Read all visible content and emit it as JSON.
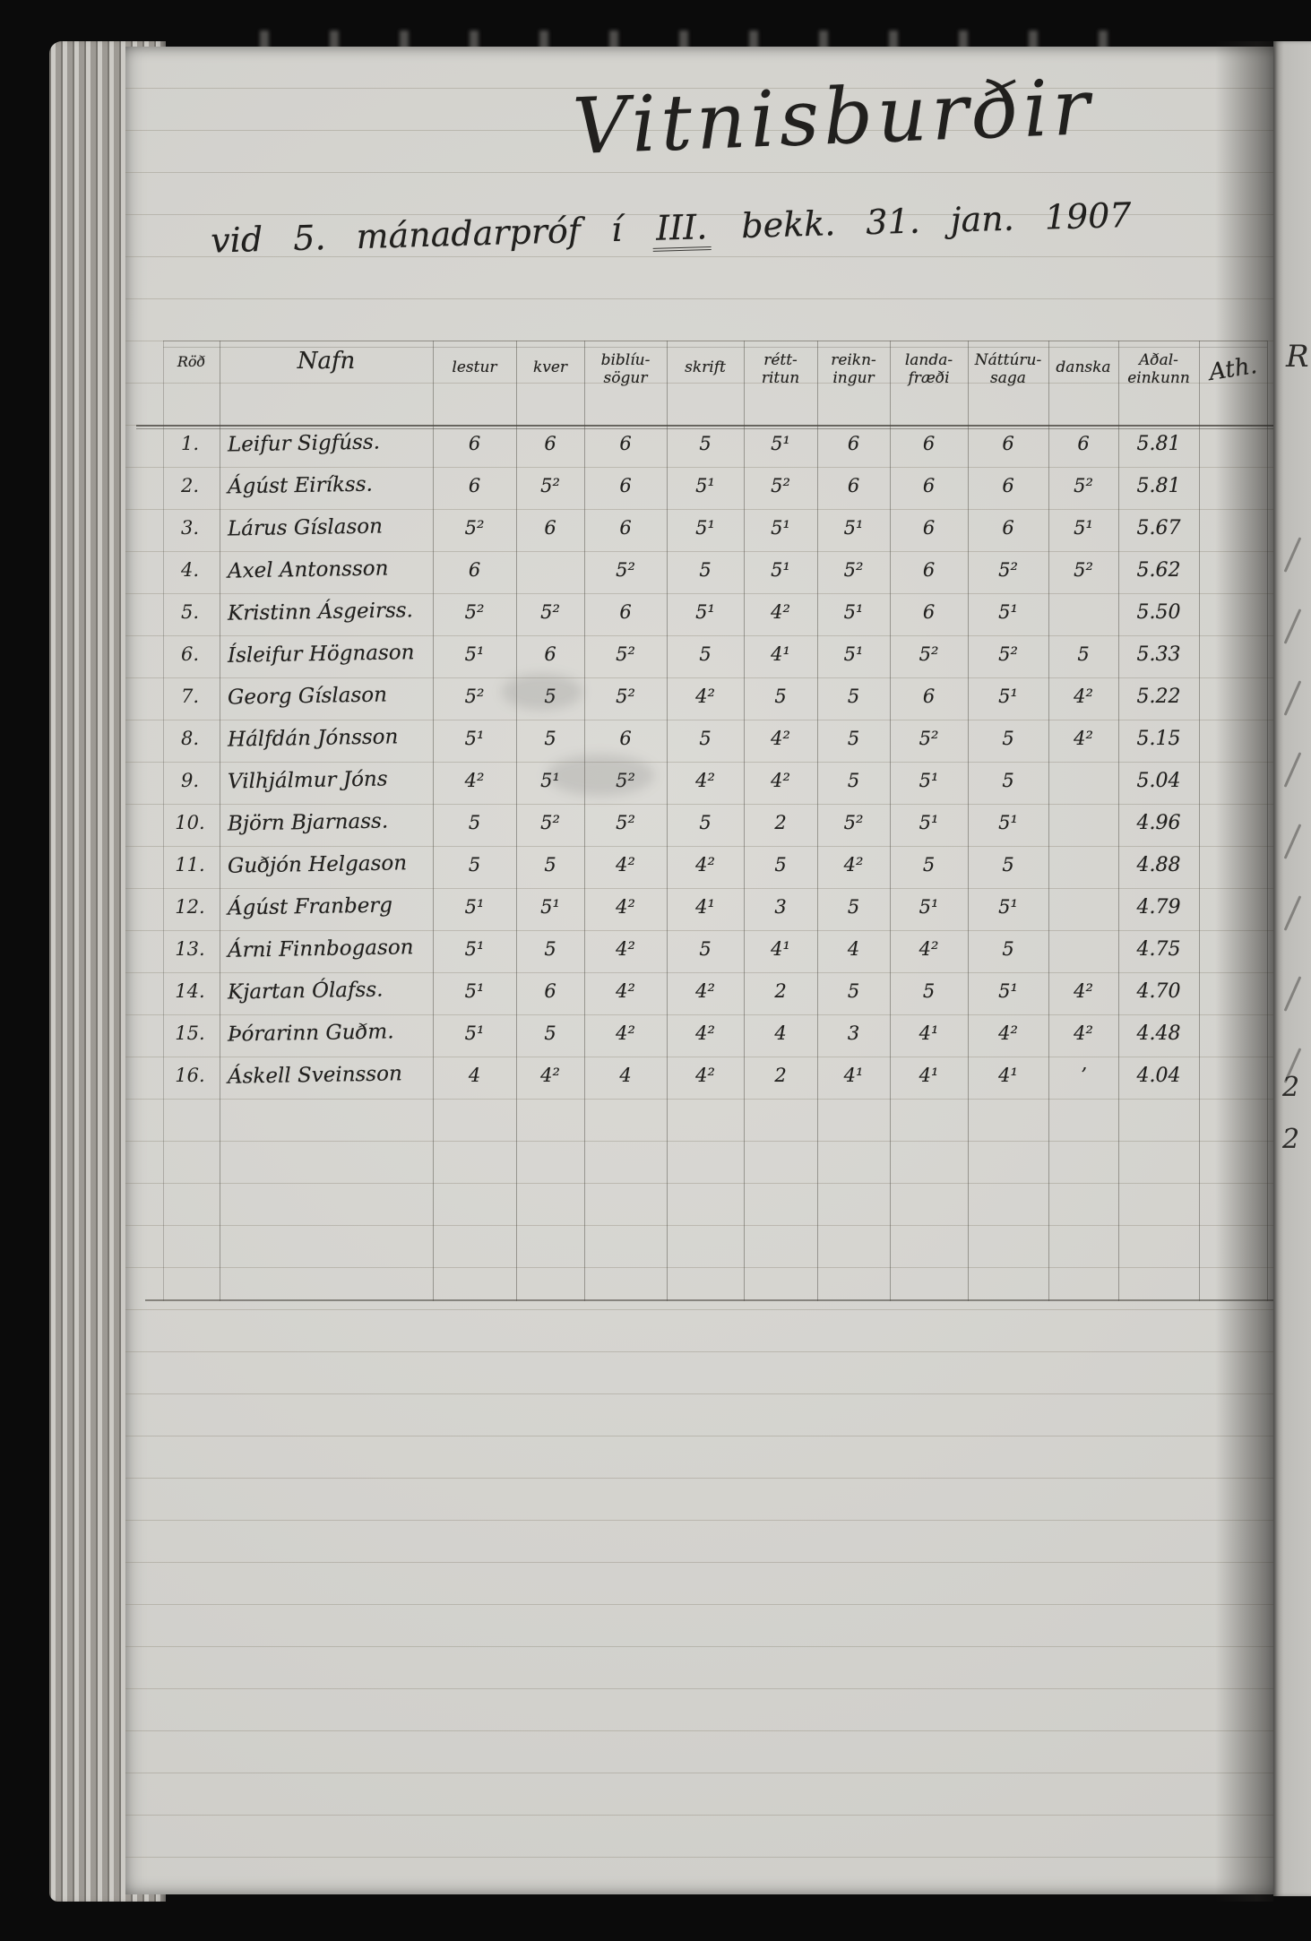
{
  "document": {
    "kind": "handwritten-grade-register-scan",
    "title": "Vitnisburðir",
    "subtitle": {
      "pre": "vid 5. mánadarpróf í",
      "em": "III.",
      "post": "bekk. 31. jan. 1907"
    }
  },
  "colors": {
    "paper": "#d7d6d1",
    "ink": "#21201e",
    "background": "#0b0b0b",
    "pencil_line": "#585a4e"
  },
  "table": {
    "row_header": "Röð",
    "name_header": "Nafn",
    "columns": [
      {
        "label1": "lestur",
        "label2": ""
      },
      {
        "label1": "kver",
        "label2": ""
      },
      {
        "label1": "biblíu-",
        "label2": "sögur"
      },
      {
        "label1": "skrift",
        "label2": ""
      },
      {
        "label1": "rétt-",
        "label2": "ritun"
      },
      {
        "label1": "reikn-",
        "label2": "ingur"
      },
      {
        "label1": "landa-",
        "label2": "fræði"
      },
      {
        "label1": "Náttúru-",
        "label2": "saga"
      },
      {
        "label1": "danska",
        "label2": ""
      },
      {
        "label1": "Aðal-",
        "label2": "einkunn"
      },
      {
        "label1": "Ath.",
        "label2": ""
      }
    ],
    "students": [
      {
        "num": "1.",
        "name": "Leifur Sigfúss.",
        "grades": [
          "6",
          "6",
          "6",
          "5",
          "5¹",
          "6",
          "6",
          "6",
          "6"
        ],
        "final": "5.81"
      },
      {
        "num": "2.",
        "name": "Ágúst Eiríkss.",
        "grades": [
          "6",
          "5²",
          "6",
          "5¹",
          "5²",
          "6",
          "6",
          "6",
          "5²"
        ],
        "final": "5.81"
      },
      {
        "num": "3.",
        "name": "Lárus Gíslason",
        "grades": [
          "5²",
          "6",
          "6",
          "5¹",
          "5¹",
          "5¹",
          "6",
          "6",
          "5¹"
        ],
        "final": "5.67"
      },
      {
        "num": "4.",
        "name": "Axel Antonsson",
        "grades": [
          "6",
          "",
          "5²",
          "5",
          "5¹",
          "5²",
          "6",
          "5²",
          "5²"
        ],
        "final": "5.62"
      },
      {
        "num": "5.",
        "name": "Kristinn Ásgeirss.",
        "grades": [
          "5²",
          "5²",
          "6",
          "5¹",
          "4²",
          "5¹",
          "6",
          "5¹",
          ""
        ],
        "final": "5.50"
      },
      {
        "num": "6.",
        "name": "Ísleifur Högnason",
        "grades": [
          "5¹",
          "6",
          "5²",
          "5",
          "4¹",
          "5¹",
          "5²",
          "5²",
          "5"
        ],
        "final": "5.33"
      },
      {
        "num": "7.",
        "name": "Georg Gíslason",
        "grades": [
          "5²",
          "5",
          "5²",
          "4²",
          "5",
          "5",
          "6",
          "5¹",
          "4²"
        ],
        "final": "5.22"
      },
      {
        "num": "8.",
        "name": "Hálfdán Jónsson",
        "grades": [
          "5¹",
          "5",
          "6",
          "5",
          "4²",
          "5",
          "5²",
          "5",
          "4²"
        ],
        "final": "5.15"
      },
      {
        "num": "9.",
        "name": "Vilhjálmur Jóns",
        "grades": [
          "4²",
          "5¹",
          "5²",
          "4²",
          "4²",
          "5",
          "5¹",
          "5",
          ""
        ],
        "final": "5.04"
      },
      {
        "num": "10.",
        "name": "Björn Bjarnass.",
        "grades": [
          "5",
          "5²",
          "5²",
          "5",
          "2",
          "5²",
          "5¹",
          "5¹",
          ""
        ],
        "final": "4.96"
      },
      {
        "num": "11.",
        "name": "Guðjón Helgason",
        "grades": [
          "5",
          "5",
          "4²",
          "4²",
          "5",
          "4²",
          "5",
          "5",
          ""
        ],
        "final": "4.88"
      },
      {
        "num": "12.",
        "name": "Ágúst Franberg",
        "grades": [
          "5¹",
          "5¹",
          "4²",
          "4¹",
          "3",
          "5",
          "5¹",
          "5¹",
          ""
        ],
        "final": "4.79"
      },
      {
        "num": "13.",
        "name": "Árni Finnbogason",
        "grades": [
          "5¹",
          "5",
          "4²",
          "5",
          "4¹",
          "4",
          "4²",
          "5",
          ""
        ],
        "final": "4.75"
      },
      {
        "num": "14.",
        "name": "Kjartan Ólafss.",
        "grades": [
          "5¹",
          "6",
          "4²",
          "4²",
          "2",
          "5",
          "5",
          "5¹",
          "4²"
        ],
        "final": "4.70"
      },
      {
        "num": "15.",
        "name": "Þórarinn Guðm.",
        "grades": [
          "5¹",
          "5",
          "4²",
          "4²",
          "4",
          "3",
          "4¹",
          "4²",
          "4²"
        ],
        "final": "4.48"
      },
      {
        "num": "16.",
        "name": "Áskell Sveinsson",
        "grades": [
          "4",
          "4²",
          "4",
          "4²",
          "2",
          "4¹",
          "4¹",
          "4¹",
          "ʼ"
        ],
        "final": "4.04"
      }
    ]
  },
  "right_edge": {
    "header_fragment": "R",
    "digit_fragments": [
      "2",
      "2"
    ]
  }
}
